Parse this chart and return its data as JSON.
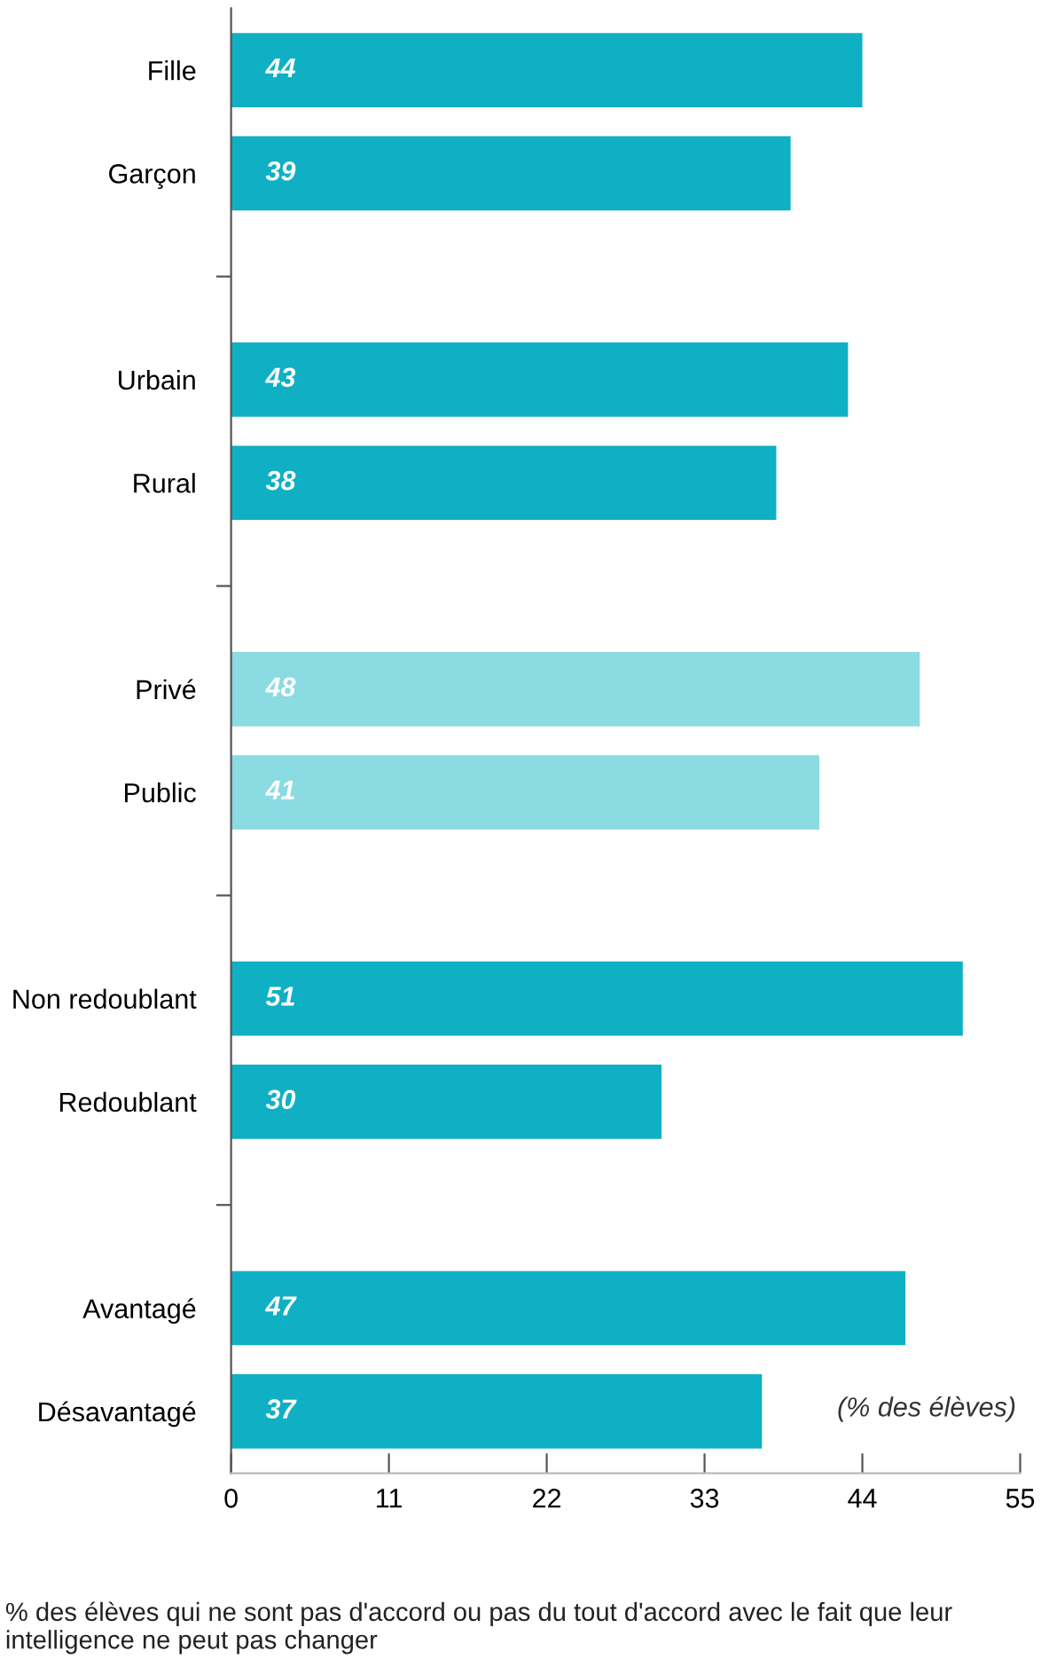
{
  "chart_data": {
    "type": "bar",
    "orientation": "horizontal",
    "categories": [
      "Fille",
      "Garçon",
      null,
      "Urbain",
      "Rural",
      null,
      "Privé",
      "Public",
      null,
      "Non redoublant",
      "Redoublant",
      null,
      "Avantagé",
      "Désavantagé"
    ],
    "values": [
      44,
      39,
      null,
      43,
      38,
      null,
      48,
      41,
      null,
      51,
      30,
      null,
      47,
      37
    ],
    "colors": [
      "#0fb0c4",
      "#0fb0c4",
      null,
      "#0fb0c4",
      "#0fb0c4",
      null,
      "#8adbe2",
      "#8adbe2",
      null,
      "#0fb0c4",
      "#0fb0c4",
      null,
      "#0fb0c4",
      "#0fb0c4"
    ],
    "xlim": [
      0,
      55
    ],
    "xticks": [
      0,
      11,
      22,
      33,
      44,
      55
    ],
    "data_labels": true,
    "grid": false,
    "legend": false,
    "annotations": [
      "(% des élèves)",
      "% des élèves qui ne sont pas d'accord ou pas du tout d'accord avec le fait que leur intelligence ne peut pas changer"
    ]
  }
}
